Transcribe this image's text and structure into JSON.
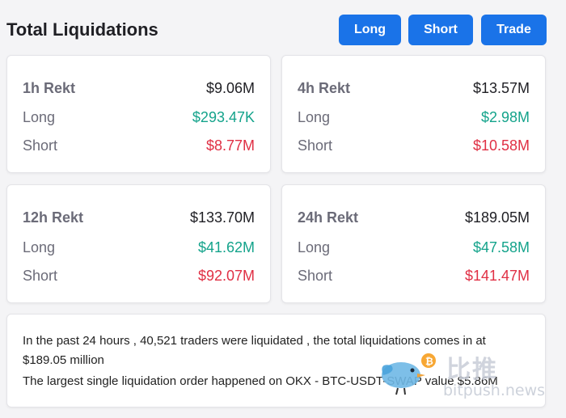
{
  "header": {
    "title": "Total Liquidations",
    "buttons": {
      "long": "Long",
      "short": "Short",
      "trade": "Trade"
    }
  },
  "cards": [
    {
      "period": "1h Rekt",
      "total": "$9.06M",
      "long_label": "Long",
      "long": "$293.47K",
      "short_label": "Short",
      "short": "$8.77M"
    },
    {
      "period": "4h Rekt",
      "total": "$13.57M",
      "long_label": "Long",
      "long": "$2.98M",
      "short_label": "Short",
      "short": "$10.58M"
    },
    {
      "period": "12h Rekt",
      "total": "$133.70M",
      "long_label": "Long",
      "long": "$41.62M",
      "short_label": "Short",
      "short": "$92.07M"
    },
    {
      "period": "24h Rekt",
      "total": "$189.05M",
      "long_label": "Long",
      "long": "$47.58M",
      "short_label": "Short",
      "short": "$141.47M"
    }
  ],
  "summary": {
    "line1": "In the past 24 hours , 40,521 traders were liquidated , the total liquidations comes in at",
    "line2": "$189.05 million",
    "line3": "The largest single liquidation order happened on OKX - BTC-USDT-SWAP value $5.86M"
  },
  "watermark": {
    "cn": "比推",
    "en": "bitpush.news"
  },
  "colors": {
    "accent": "#1a73e8",
    "long": "#14a38b",
    "short": "#e02f44"
  },
  "icons": {
    "watermark_logo": "bird-bitcoin-logo"
  }
}
